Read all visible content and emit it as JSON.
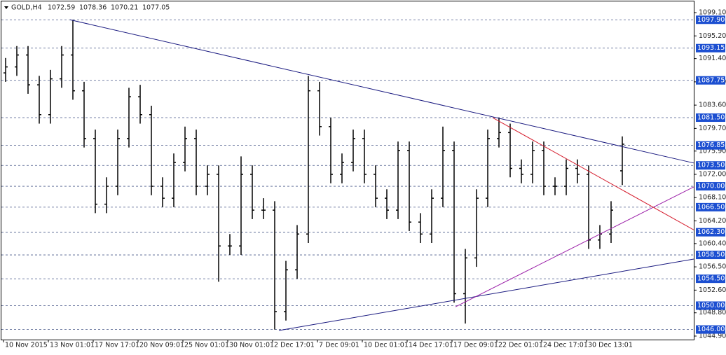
{
  "header": {
    "symbol": "GOLD,H4"
  },
  "chart_data": {
    "type": "candlestick",
    "categories": [
      "10 Nov 2015",
      null,
      null,
      null,
      "13 Nov 01:01",
      null,
      null,
      null,
      "17 Nov 17:01",
      null,
      null,
      null,
      "20 Nov 09:01",
      null,
      null,
      null,
      "25 Nov 01:01",
      null,
      null,
      null,
      "30 Nov 01:01",
      null,
      null,
      null,
      "2 Dec 17:01",
      null,
      null,
      null,
      "7 Dec 09:01",
      null,
      null,
      null,
      "10 Dec 01:01",
      null,
      null,
      null,
      "14 Dec 17:01",
      null,
      null,
      null,
      "17 Dec 09:01",
      null,
      null,
      null,
      "22 Dec 01:01",
      null,
      null,
      null,
      "24 Dec 17:01",
      null,
      null,
      null,
      "30 Dec 13:01",
      null,
      null,
      null
    ],
    "open": [
      1089,
      1090,
      1092,
      1087,
      1082,
      1088,
      1092,
      1086,
      1078,
      1067,
      1070,
      1078,
      1085,
      1082,
      1070,
      1068,
      1074,
      1078,
      1070,
      1072,
      1060,
      1060,
      1072,
      1066,
      1066,
      1049,
      1056,
      1062,
      1086,
      1080,
      1072,
      1074,
      1078,
      1072,
      1068,
      1066,
      1076,
      1064,
      1062,
      1068,
      1076,
      1052,
      1058,
      1068,
      1078,
      1079,
      1073,
      1072,
      1076,
      1070,
      1070,
      1073,
      1072,
      1061,
      1062,
      1072.59
    ],
    "high": [
      1091.5,
      1093.5,
      1093.5,
      1088.5,
      1089.5,
      1093.5,
      1097.9,
      1087.5,
      1079.5,
      1071.5,
      1079.5,
      1086.5,
      1087,
      1083.5,
      1071.5,
      1075.5,
      1080,
      1079.5,
      1073.5,
      1073.5,
      1062,
      1075,
      1073.5,
      1068,
      1067.5,
      1057.5,
      1063.5,
      1088.5,
      1087.5,
      1081.5,
      1075.5,
      1079.5,
      1079.5,
      1073.5,
      1069.5,
      1077.5,
      1077.5,
      1065.5,
      1069.5,
      1080,
      1077.5,
      1059.5,
      1069.5,
      1079.5,
      1081.5,
      1080.5,
      1074.5,
      1077.5,
      1077.5,
      1071.5,
      1074.5,
      1074.5,
      1073.5,
      1063.5,
      1067.5,
      1078.36
    ],
    "low": [
      1087.5,
      1088.5,
      1085.5,
      1080.5,
      1080.5,
      1086.5,
      1084.5,
      1076.5,
      1065.5,
      1065.5,
      1068.5,
      1076.5,
      1080.5,
      1068.5,
      1066.5,
      1066.5,
      1072.5,
      1068.5,
      1068.5,
      1054,
      1058.5,
      1058.5,
      1064.5,
      1064.5,
      1046,
      1047.5,
      1054.5,
      1060.5,
      1078.5,
      1070.5,
      1070.5,
      1072.5,
      1070.5,
      1066.5,
      1064.5,
      1064.5,
      1062.5,
      1060.5,
      1060.5,
      1066.5,
      1050.5,
      1047,
      1056.5,
      1066.5,
      1076.5,
      1071.5,
      1070.5,
      1070.5,
      1068.5,
      1068.5,
      1068.5,
      1070.5,
      1059.5,
      1059.5,
      1060.5,
      1070.21
    ],
    "close": [
      1090,
      1092,
      1087,
      1082,
      1088,
      1092,
      1086,
      1078,
      1067,
      1070,
      1078,
      1085,
      1082,
      1070,
      1068,
      1074,
      1078,
      1070,
      1072,
      1060,
      1060,
      1072,
      1066,
      1066,
      1049,
      1056,
      1062,
      1086,
      1080,
      1072,
      1074,
      1078,
      1072,
      1068,
      1066,
      1076,
      1064,
      1062,
      1068,
      1076,
      1052,
      1058,
      1068,
      1078,
      1079,
      1073,
      1072,
      1076,
      1070,
      1070,
      1073,
      1072,
      1061,
      1062,
      1066,
      1077.05
    ],
    "color": "#000000",
    "ylim": [
      1044.31,
      1100.98
    ],
    "yticks": [
      {
        "value": 1099.1,
        "label": "1099.10"
      },
      {
        "value": 1095.2,
        "label": "1095.20"
      },
      {
        "value": 1091.4,
        "label": "1091.40"
      },
      {
        "value": 1087.5,
        "label": "1087.50"
      },
      {
        "value": 1083.6,
        "label": "1083.60"
      },
      {
        "value": 1079.7,
        "label": "1079.70"
      },
      {
        "value": 1075.9,
        "label": "1075.90"
      },
      {
        "value": 1072,
        "label": "1072.00"
      },
      {
        "value": 1068.1,
        "label": "1068.10"
      },
      {
        "value": 1064.2,
        "label": "1064.20"
      },
      {
        "value": 1060.4,
        "label": "1060.40"
      },
      {
        "value": 1056.5,
        "label": "1056.50"
      },
      {
        "value": 1052.6,
        "label": "1052.60"
      },
      {
        "value": 1048.8,
        "label": "1048.80"
      },
      {
        "value": 1044.9,
        "label": "1044.90"
      }
    ],
    "levels": [
      {
        "value": 1097.9,
        "label": "1097.90"
      },
      {
        "value": 1093.15,
        "label": "1093.15"
      },
      {
        "value": 1087.75,
        "label": "1087.75"
      },
      {
        "value": 1081.5,
        "label": "1081.50"
      },
      {
        "value": 1076.85,
        "label": "1076.85"
      },
      {
        "value": 1073.5,
        "label": "1073.50"
      },
      {
        "value": 1070,
        "label": "1070.00"
      },
      {
        "value": 1066.5,
        "label": "1066.50"
      },
      {
        "value": 1062.3,
        "label": "1062.30"
      },
      {
        "value": 1058.5,
        "label": "1058.50"
      },
      {
        "value": 1054.5,
        "label": "1054.50"
      },
      {
        "value": 1050,
        "label": "1050.00"
      },
      {
        "value": 1046,
        "label": "1046.00"
      }
    ],
    "level_color": "#1c4fd1",
    "trendlines": [
      {
        "x": [
          5.75,
          61.375
        ],
        "y": [
          1097.9,
          1073.9
        ],
        "color": "#1a1a80"
      },
      {
        "x": [
          24.375,
          61.375
        ],
        "y": [
          1045.84,
          1057.8
        ],
        "color": "#1a1a80"
      },
      {
        "x": [
          40.125,
          61.375
        ],
        "y": [
          1049.8,
          1069.9
        ],
        "color": "#9b1fa8"
      },
      {
        "x": [
          43.44,
          61.375
        ],
        "y": [
          1081.5,
          1062.7
        ],
        "color": "#d62030"
      }
    ]
  }
}
